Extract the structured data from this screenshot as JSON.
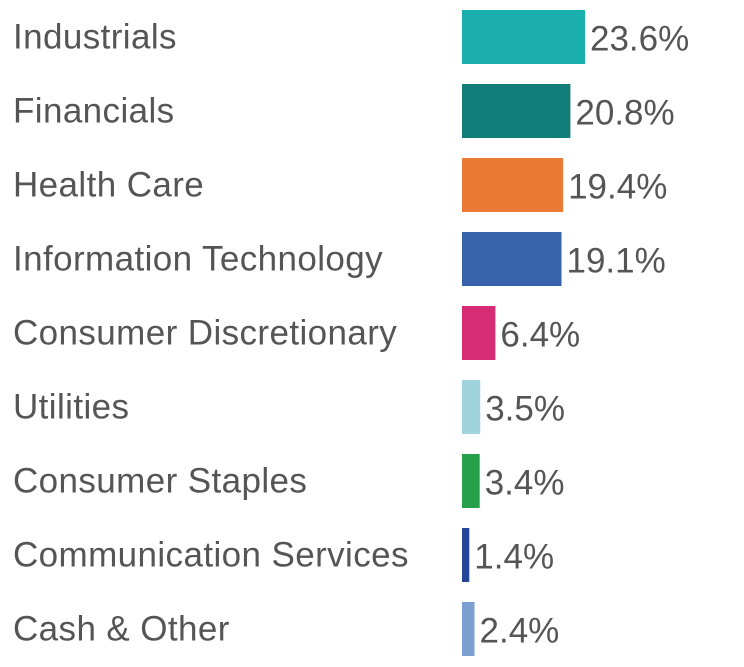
{
  "chart_data": {
    "type": "bar",
    "orientation": "horizontal",
    "categories": [
      "Industrials",
      "Financials",
      "Health Care",
      "Information Technology",
      "Consumer Discretionary",
      "Utilities",
      "Consumer Staples",
      "Communication Services",
      "Cash & Other"
    ],
    "values": [
      23.6,
      20.8,
      19.4,
      19.1,
      6.4,
      3.5,
      3.4,
      1.4,
      2.4
    ],
    "value_labels": [
      "23.6%",
      "20.8%",
      "19.4%",
      "19.1%",
      "6.4%",
      "3.5%",
      "3.4%",
      "1.4%",
      "2.4%"
    ],
    "colors": [
      "#1aafad",
      "#117e79",
      "#eb7b34",
      "#3663ab",
      "#d62c73",
      "#9fd4de",
      "#27a149",
      "#25479a",
      "#7b9fd1"
    ],
    "title": "",
    "xlabel": "",
    "ylabel": "",
    "xlim": [
      0,
      23.6
    ],
    "grid": false,
    "legend": "none"
  }
}
